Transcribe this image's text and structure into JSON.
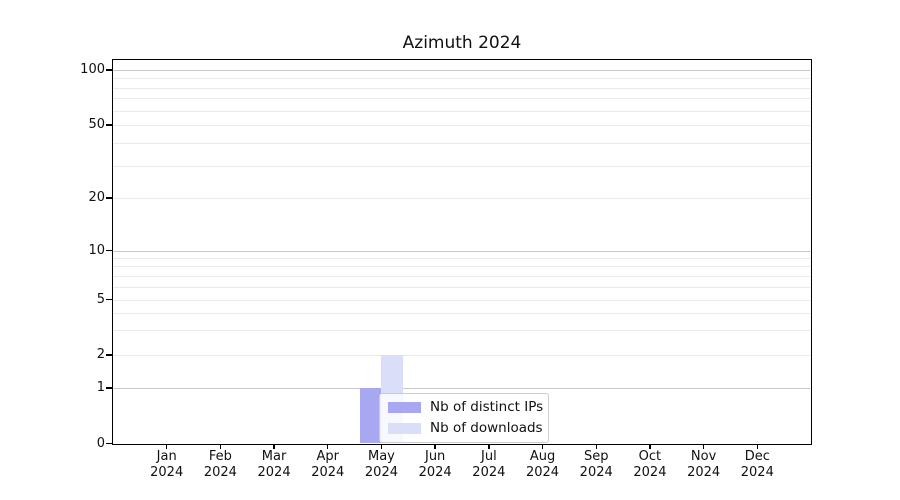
{
  "chart_data": {
    "type": "bar",
    "title": "Azimuth 2024",
    "categories": [
      "Jan 2024",
      "Feb 2024",
      "Mar 2024",
      "Apr 2024",
      "May 2024",
      "Jun 2024",
      "Jul 2024",
      "Aug 2024",
      "Sep 2024",
      "Oct 2024",
      "Nov 2024",
      "Dec 2024"
    ],
    "series": [
      {
        "name": "Nb of distinct IPs",
        "color": "#a8a8f2",
        "values": [
          0,
          0,
          0,
          0,
          1,
          0,
          0,
          0,
          0,
          0,
          0,
          0
        ]
      },
      {
        "name": "Nb of downloads",
        "color": "#dbdef8",
        "values": [
          0,
          0,
          0,
          0,
          2,
          0,
          0,
          0,
          0,
          0,
          0,
          0
        ]
      }
    ],
    "xlabel": "",
    "ylabel": "",
    "yscale": "symlog",
    "ylim": [
      0,
      130
    ],
    "ytick_labels": [
      "100",
      "50",
      "20",
      "10",
      "5",
      "2",
      "1",
      "0"
    ],
    "ytick_values": [
      100,
      50,
      20,
      10,
      5,
      2,
      1,
      0
    ],
    "grid_major_values": [
      1,
      10,
      100
    ],
    "grid_minor_values": [
      2,
      3,
      4,
      5,
      6,
      7,
      8,
      9,
      20,
      30,
      40,
      50,
      60,
      70,
      80,
      90
    ],
    "grid": "horizontal",
    "legend_position": "lower-center-inside"
  },
  "legend": {
    "entries": [
      {
        "label": "Nb of distinct IPs",
        "color": "#a8a8f2"
      },
      {
        "label": "Nb of downloads",
        "color": "#dbdef8"
      }
    ]
  }
}
